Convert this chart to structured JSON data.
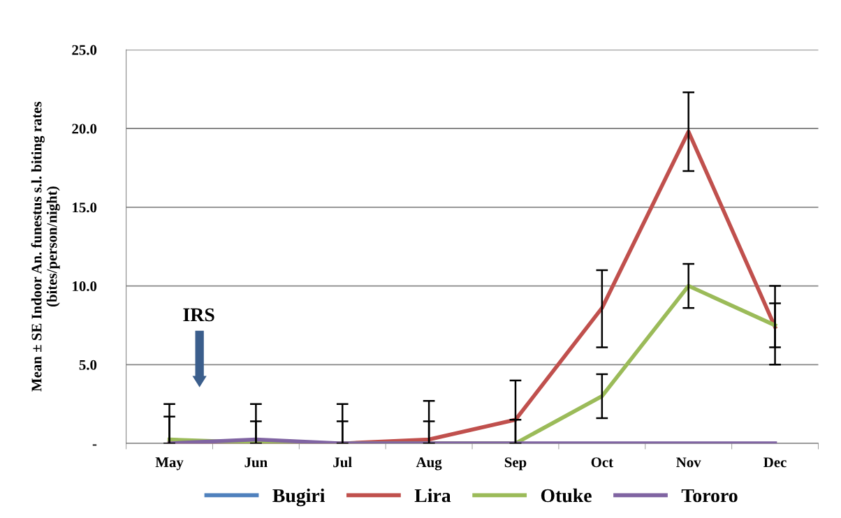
{
  "chart_data": {
    "type": "line",
    "ylabel": "Mean ± SE Indoor An. funestus s.l. biting rates\n(bites/person/night)",
    "categories": [
      "May",
      "Jun",
      "Jul",
      "Aug",
      "Sep",
      "Oct",
      "Nov",
      "Dec"
    ],
    "series": [
      {
        "name": "Bugiri",
        "color": "#4f81bd",
        "values": [
          null,
          null,
          null,
          null,
          null,
          null,
          null,
          null
        ]
      },
      {
        "name": "Lira",
        "color": "#c0504d",
        "values": [
          0,
          0,
          0,
          0.25,
          1.5,
          8.6,
          19.8,
          7.4
        ],
        "errors": [
          [
            0,
            2.5
          ],
          [
            0,
            2.5
          ],
          [
            0,
            2.5
          ],
          [
            0,
            2.7
          ],
          [
            0,
            4.0
          ],
          [
            6.1,
            11.0
          ],
          [
            17.3,
            22.3
          ],
          [
            5.0,
            10.0
          ]
        ]
      },
      {
        "name": "Otuke",
        "color": "#9bbb59",
        "values": [
          0.25,
          0.05,
          0,
          0,
          0,
          3.0,
          10.0,
          7.5
        ],
        "errors": [
          [
            0,
            1.7
          ],
          [
            0,
            1.4
          ],
          [
            0,
            1.4
          ],
          [
            0,
            1.4
          ],
          [
            0,
            1.5
          ],
          [
            1.6,
            4.4
          ],
          [
            8.6,
            11.4
          ],
          [
            6.1,
            8.9
          ]
        ]
      },
      {
        "name": "Tororo",
        "color": "#8064a2",
        "values": [
          0,
          0.25,
          0,
          0,
          0,
          0,
          0,
          0
        ]
      }
    ],
    "ylim": [
      0,
      25
    ],
    "yticks": [
      {
        "value": 0,
        "label": "-"
      },
      {
        "value": 5,
        "label": "5.0"
      },
      {
        "value": 10,
        "label": "10.0"
      },
      {
        "value": 15,
        "label": "15.0"
      },
      {
        "value": 20,
        "label": "20.0"
      },
      {
        "value": 25,
        "label": "25.0"
      }
    ],
    "grid": "y",
    "legend": "bottom",
    "marker": "none",
    "line_style": "solid",
    "annotations": [
      "IRS"
    ]
  }
}
